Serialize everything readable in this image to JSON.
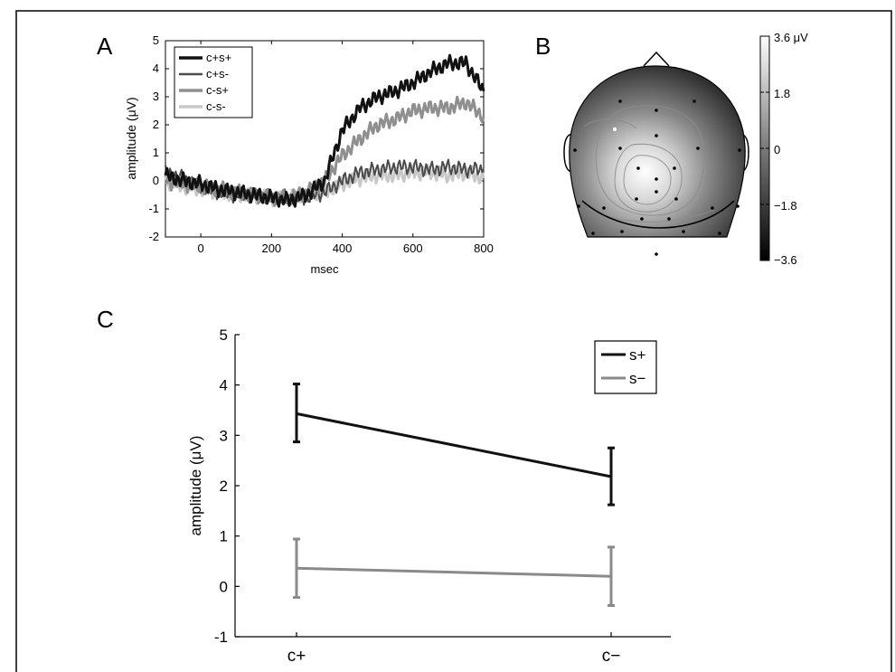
{
  "panels": {
    "a": "A",
    "b": "B",
    "c": "C"
  },
  "colors": {
    "black": "#111111",
    "dark_gray": "#4a4a4a",
    "mid_gray": "#8f8f8f",
    "light_gray": "#c8c8c8",
    "s_minus_gray": "#8a8a8a"
  },
  "chart_data": [
    {
      "id": "A",
      "type": "line",
      "xlabel": "msec",
      "ylabel": "amplitude (μV)",
      "xlim": [
        -100,
        800
      ],
      "ylim": [
        -2,
        5
      ],
      "xticks": [
        0,
        200,
        400,
        600,
        800
      ],
      "yticks": [
        -2,
        -1,
        0,
        1,
        2,
        3,
        4,
        5
      ],
      "legend_position": "top-left",
      "x": [
        -100,
        -50,
        0,
        50,
        100,
        150,
        200,
        250,
        300,
        350,
        400,
        450,
        500,
        550,
        600,
        650,
        700,
        750,
        800
      ],
      "series": [
        {
          "name": "c+s+",
          "color": "#111111",
          "width": 3,
          "values": [
            0.2,
            0.0,
            -0.1,
            -0.3,
            -0.4,
            -0.5,
            -0.6,
            -0.7,
            -0.5,
            0.0,
            1.8,
            2.6,
            3.0,
            3.2,
            3.5,
            3.9,
            4.2,
            4.2,
            3.2
          ]
        },
        {
          "name": "c+s-",
          "color": "#4a4a4a",
          "width": 2,
          "values": [
            0.3,
            0.1,
            -0.2,
            -0.4,
            -0.5,
            -0.5,
            -0.6,
            -0.6,
            -0.6,
            -0.4,
            0.0,
            0.3,
            0.4,
            0.5,
            0.5,
            0.4,
            0.5,
            0.4,
            0.4
          ]
        },
        {
          "name": "c-s+",
          "color": "#8f8f8f",
          "width": 3,
          "values": [
            0.0,
            -0.1,
            -0.2,
            -0.3,
            -0.4,
            -0.5,
            -0.6,
            -0.6,
            -0.4,
            0.0,
            0.9,
            1.5,
            2.0,
            2.2,
            2.5,
            2.6,
            2.6,
            2.8,
            2.3
          ]
        },
        {
          "name": "c-s-",
          "color": "#c8c8c8",
          "width": 3,
          "values": [
            0.0,
            -0.2,
            -0.3,
            -0.4,
            -0.5,
            -0.5,
            -0.6,
            -0.6,
            -0.5,
            -0.4,
            -0.1,
            0.1,
            0.2,
            0.2,
            0.3,
            0.3,
            0.2,
            0.3,
            0.1
          ]
        }
      ]
    },
    {
      "id": "B",
      "type": "heatmap",
      "colorbar": {
        "min": -3.6,
        "max": 3.6,
        "tick_labels": [
          "3.6 μV",
          "1.8",
          "0",
          "−1.8",
          "−3.6"
        ]
      }
    },
    {
      "id": "C",
      "type": "line",
      "categories": [
        "c+",
        "c−"
      ],
      "ylabel": "amplitude (μV)",
      "ylim": [
        -1,
        5
      ],
      "yticks": [
        -1,
        0,
        1,
        2,
        3,
        4,
        5
      ],
      "legend_position": "top-right",
      "series": [
        {
          "name": "s+",
          "color": "#111111",
          "values": [
            3.43,
            2.18
          ],
          "err_low": [
            2.87,
            1.62
          ],
          "err_high": [
            4.02,
            2.75
          ]
        },
        {
          "name": "s−",
          "color": "#8a8a8a",
          "values": [
            0.36,
            0.2
          ],
          "err_low": [
            -0.22,
            -0.38
          ],
          "err_high": [
            0.94,
            0.78
          ]
        }
      ]
    }
  ]
}
